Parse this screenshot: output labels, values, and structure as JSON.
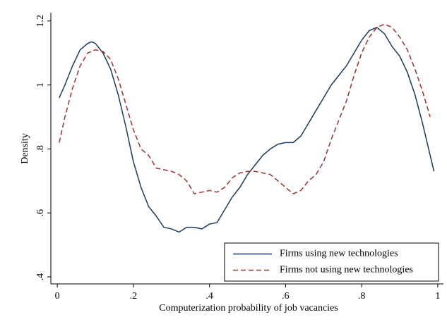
{
  "chart_data": {
    "type": "line",
    "xlabel": "Computerization probability of job vacancies",
    "ylabel": "Density",
    "xlim": [
      -0.017,
      1.015
    ],
    "ylim": [
      0.378,
      1.226
    ],
    "xticks": [
      0,
      {
        "value": 0.2,
        "label": ".2"
      },
      {
        "value": 0.4,
        "label": ".4"
      },
      {
        "value": 0.6,
        "label": ".6"
      },
      {
        "value": 0.8,
        "label": ".8"
      },
      1
    ],
    "yticks": [
      {
        "value": 0.4,
        "label": ".4"
      },
      {
        "value": 0.6,
        "label": ".6"
      },
      {
        "value": 0.8,
        "label": ".8"
      },
      1,
      1.2
    ],
    "legend": "lower right",
    "series": [
      {
        "name": "Firms using new technologies",
        "color": "#1a3b5e",
        "dash": "solid",
        "x": [
          0.005,
          0.02,
          0.04,
          0.06,
          0.08,
          0.09,
          0.1,
          0.12,
          0.14,
          0.16,
          0.18,
          0.2,
          0.22,
          0.24,
          0.26,
          0.28,
          0.3,
          0.32,
          0.34,
          0.36,
          0.38,
          0.4,
          0.42,
          0.44,
          0.46,
          0.48,
          0.5,
          0.52,
          0.54,
          0.56,
          0.58,
          0.6,
          0.62,
          0.64,
          0.66,
          0.68,
          0.7,
          0.72,
          0.74,
          0.76,
          0.78,
          0.8,
          0.82,
          0.84,
          0.86,
          0.88,
          0.9,
          0.92,
          0.94,
          0.96,
          0.98,
          0.99
        ],
        "values": [
          0.96,
          1.0,
          1.06,
          1.11,
          1.13,
          1.135,
          1.13,
          1.1,
          1.05,
          0.97,
          0.87,
          0.76,
          0.68,
          0.62,
          0.59,
          0.555,
          0.55,
          0.54,
          0.555,
          0.555,
          0.55,
          0.565,
          0.57,
          0.61,
          0.65,
          0.68,
          0.72,
          0.75,
          0.78,
          0.8,
          0.815,
          0.82,
          0.82,
          0.84,
          0.88,
          0.92,
          0.96,
          1.0,
          1.03,
          1.06,
          1.1,
          1.14,
          1.17,
          1.18,
          1.16,
          1.12,
          1.09,
          1.04,
          0.97,
          0.88,
          0.78,
          0.73
        ]
      },
      {
        "name": "Firms not using new technologies",
        "color": "#a0322d",
        "dash": "dashed",
        "x": [
          0.005,
          0.02,
          0.04,
          0.06,
          0.08,
          0.1,
          0.12,
          0.14,
          0.16,
          0.18,
          0.2,
          0.22,
          0.24,
          0.26,
          0.28,
          0.3,
          0.32,
          0.34,
          0.36,
          0.38,
          0.4,
          0.42,
          0.44,
          0.46,
          0.48,
          0.5,
          0.52,
          0.54,
          0.56,
          0.58,
          0.6,
          0.62,
          0.64,
          0.66,
          0.68,
          0.7,
          0.72,
          0.74,
          0.76,
          0.78,
          0.8,
          0.82,
          0.84,
          0.86,
          0.88,
          0.9,
          0.92,
          0.94,
          0.96,
          0.98
        ],
        "values": [
          0.82,
          0.9,
          0.99,
          1.06,
          1.1,
          1.11,
          1.105,
          1.08,
          1.02,
          0.94,
          0.86,
          0.8,
          0.78,
          0.74,
          0.735,
          0.73,
          0.72,
          0.7,
          0.66,
          0.665,
          0.67,
          0.665,
          0.68,
          0.71,
          0.725,
          0.73,
          0.73,
          0.725,
          0.72,
          0.7,
          0.68,
          0.66,
          0.67,
          0.7,
          0.72,
          0.76,
          0.83,
          0.89,
          0.95,
          1.03,
          1.1,
          1.15,
          1.18,
          1.19,
          1.18,
          1.15,
          1.11,
          1.05,
          0.98,
          0.9
        ]
      }
    ]
  }
}
